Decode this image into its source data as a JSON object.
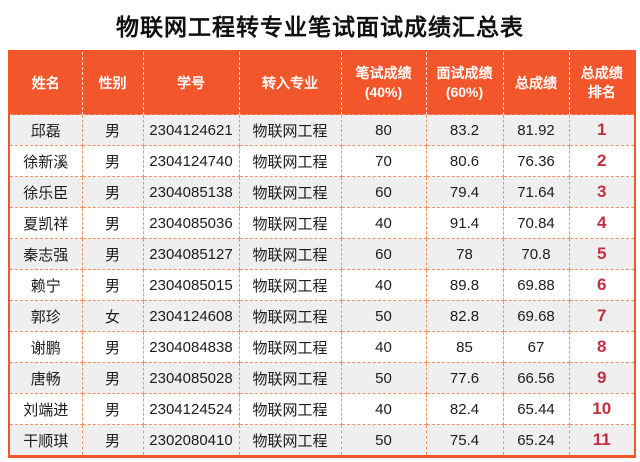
{
  "title": "物联网工程转专业笔试面试成绩汇总表",
  "colors": {
    "header_bg": "#f4562b",
    "header_text": "#ffffff",
    "rank_text": "#c22f40",
    "row_alt_bg": "#efefef",
    "cell_border_dashed": "#fa8f66",
    "outer_border": "#f4562b",
    "body_text": "#1c1c1c"
  },
  "table": {
    "columns": [
      {
        "key": "name",
        "lines": [
          "姓名"
        ]
      },
      {
        "key": "gender",
        "lines": [
          "性别"
        ]
      },
      {
        "key": "student_id",
        "lines": [
          "学号"
        ]
      },
      {
        "key": "major",
        "lines": [
          "转入专业"
        ]
      },
      {
        "key": "written",
        "lines": [
          "笔试成绩",
          "(40%)"
        ]
      },
      {
        "key": "interview",
        "lines": [
          "面试成绩",
          "(60%)"
        ]
      },
      {
        "key": "total",
        "lines": [
          "总成绩"
        ]
      },
      {
        "key": "rank",
        "lines": [
          "总成绩",
          "排名"
        ]
      }
    ],
    "rows": [
      {
        "name": "邱磊",
        "gender": "男",
        "student_id": "2304124621",
        "major": "物联网工程",
        "written": "80",
        "interview": "83.2",
        "total": "81.92",
        "rank": "1"
      },
      {
        "name": "徐新溪",
        "gender": "男",
        "student_id": "2304124740",
        "major": "物联网工程",
        "written": "70",
        "interview": "80.6",
        "total": "76.36",
        "rank": "2"
      },
      {
        "name": "徐乐臣",
        "gender": "男",
        "student_id": "2304085138",
        "major": "物联网工程",
        "written": "60",
        "interview": "79.4",
        "total": "71.64",
        "rank": "3"
      },
      {
        "name": "夏凯祥",
        "gender": "男",
        "student_id": "2304085036",
        "major": "物联网工程",
        "written": "40",
        "interview": "91.4",
        "total": "70.84",
        "rank": "4"
      },
      {
        "name": "秦志强",
        "gender": "男",
        "student_id": "2304085127",
        "major": "物联网工程",
        "written": "60",
        "interview": "78",
        "total": "70.8",
        "rank": "5"
      },
      {
        "name": "赖宁",
        "gender": "男",
        "student_id": "2304085015",
        "major": "物联网工程",
        "written": "40",
        "interview": "89.8",
        "total": "69.88",
        "rank": "6"
      },
      {
        "name": "郭珍",
        "gender": "女",
        "student_id": "2304124608",
        "major": "物联网工程",
        "written": "50",
        "interview": "82.8",
        "total": "69.68",
        "rank": "7"
      },
      {
        "name": "谢鹏",
        "gender": "男",
        "student_id": "2304084838",
        "major": "物联网工程",
        "written": "40",
        "interview": "85",
        "total": "67",
        "rank": "8"
      },
      {
        "name": "唐畅",
        "gender": "男",
        "student_id": "2304085028",
        "major": "物联网工程",
        "written": "50",
        "interview": "77.6",
        "total": "66.56",
        "rank": "9"
      },
      {
        "name": "刘端进",
        "gender": "男",
        "student_id": "2304124524",
        "major": "物联网工程",
        "written": "40",
        "interview": "82.4",
        "total": "65.44",
        "rank": "10"
      },
      {
        "name": "干顺琪",
        "gender": "男",
        "student_id": "2302080410",
        "major": "物联网工程",
        "written": "50",
        "interview": "75.4",
        "total": "65.24",
        "rank": "11"
      }
    ]
  }
}
